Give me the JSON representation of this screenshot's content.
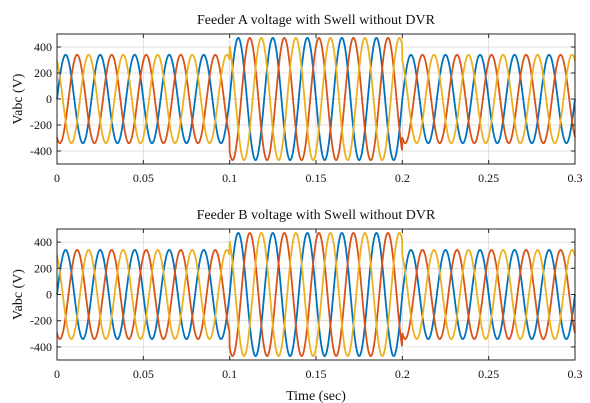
{
  "chart_data": [
    {
      "type": "line",
      "title": "Feeder A voltage with Swell without DVR",
      "xlabel": "",
      "ylabel": "Vabc (V)",
      "xlim": [
        0,
        0.3
      ],
      "ylim": [
        -500,
        500
      ],
      "xticks": [
        0,
        0.05,
        0.1,
        0.15,
        0.2,
        0.25,
        0.3
      ],
      "xtick_labels": [
        "0",
        "0.05",
        "0.1",
        "0.15",
        "0.2",
        "0.25",
        "0.3"
      ],
      "yticks": [
        400,
        200,
        0,
        -200,
        -400
      ],
      "ytick_labels": [
        "400",
        "200",
        "0",
        "-200",
        "-400"
      ],
      "grid": true,
      "signal": {
        "frequency_hz": 50,
        "normal_amplitude": 340,
        "swell_amplitude": 470,
        "swell_start": 0.1,
        "swell_end": 0.2,
        "phase_shifts_deg": [
          0,
          -120,
          120
        ]
      },
      "series": [
        {
          "color": "#0072BD"
        },
        {
          "color": "#D95319"
        },
        {
          "color": "#EDB120"
        }
      ]
    },
    {
      "type": "line",
      "title": "Feeder B voltage with Swell without DVR",
      "xlabel": "Time (sec)",
      "ylabel": "Vabc (V)",
      "xlim": [
        0,
        0.3
      ],
      "ylim": [
        -500,
        500
      ],
      "xticks": [
        0,
        0.05,
        0.1,
        0.15,
        0.2,
        0.25,
        0.3
      ],
      "xtick_labels": [
        "0",
        "0.05",
        "0.1",
        "0.15",
        "0.2",
        "0.25",
        "0.3"
      ],
      "yticks": [
        400,
        200,
        0,
        -200,
        -400
      ],
      "ytick_labels": [
        "400",
        "200",
        "0",
        "-200",
        "-400"
      ],
      "grid": true,
      "signal": {
        "frequency_hz": 50,
        "normal_amplitude": 340,
        "swell_amplitude": 470,
        "swell_start": 0.1,
        "swell_end": 0.2,
        "phase_shifts_deg": [
          0,
          -120,
          120
        ]
      },
      "series": [
        {
          "color": "#0072BD"
        },
        {
          "color": "#D95319"
        },
        {
          "color": "#EDB120"
        }
      ]
    }
  ]
}
